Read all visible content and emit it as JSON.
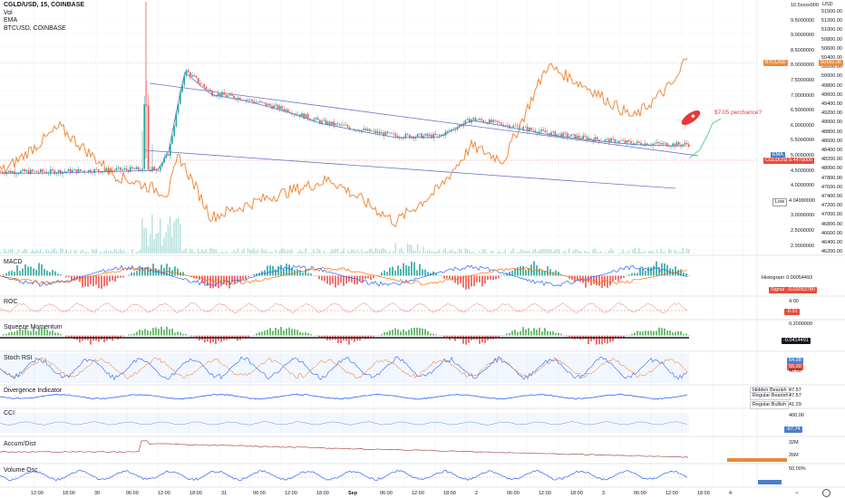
{
  "header": {
    "symbol_line": "CGLD/USD, 15, COINBASE",
    "vol_label": "Vol",
    "ema_label": "EMA",
    "btc_label": "BTCUSD, COINBASE"
  },
  "annotation": {
    "text": "$7.05 perchance?",
    "icon": "rocket-icon",
    "color": "#e53935"
  },
  "main_axis": {
    "cgld_ticks": [
      "10.5xxxx000",
      "9.5000000",
      "9.0000000",
      "8.5000000",
      "8.0000000",
      "7.5000000",
      "7.0000000",
      "6.5000000",
      "6.0000000",
      "5.5000000",
      "5.0000000",
      "4.5000000",
      "4.0000000",
      "3.5000000",
      "3.0000000",
      "2.5000000",
      "2.0000000"
    ],
    "btc_title": "USD",
    "btc_ticks": [
      "51500.00",
      "51200.00",
      "51000.00",
      "50800.00",
      "50600.00",
      "50400.00",
      "50200.00",
      "50000.00",
      "49800.00",
      "49600.00",
      "49400.00",
      "49200.00",
      "49000.00",
      "48800.00",
      "48600.00",
      "48400.00",
      "48200.00",
      "48000.00",
      "47800.00",
      "47600.00",
      "47400.00",
      "47200.00",
      "47000.00",
      "46800.00",
      "46600.00",
      "46400.00",
      "46200.00"
    ]
  },
  "tags": {
    "btc_usd": "BTCUSD",
    "btc_price": "50192.06",
    "ema": "EMA",
    "cgld_usd": "CGLDUSD",
    "cgld_price": "5.4479000",
    "low_label": "Low",
    "low_value": "4.04990000"
  },
  "panels": {
    "macd": {
      "label": "MACD",
      "histogram_label": "Histogram",
      "histogram_value": "0.00054493",
      "signal_label": "Signal",
      "macd_value": "-0.02053780"
    },
    "roc": {
      "label": "ROC",
      "tick": "4.00",
      "value": "-0.31"
    },
    "squeeze": {
      "label": "Squeeze Momentum",
      "tick": "0.2000000",
      "value": "-0.0414491"
    },
    "stoch": {
      "label": "Stoch RSI",
      "tick1": "80.00",
      "tick2": "40.00",
      "v1": "54.98",
      "v2": "55.00"
    },
    "divergence": {
      "label": "Divergence Indicator",
      "hidden_bearish": "Hidden Bearish",
      "regular_bearish": "Regular Bearish",
      "regular_bullish": "Regular Bullish",
      "v1": "47.57",
      "v2": "47.57",
      "v3": "41.29"
    },
    "cci": {
      "label": "CCI",
      "tick": "400.00",
      "value": "-67.74"
    },
    "accum": {
      "label": "Accum/Dist",
      "tick1": "32M",
      "tick2": "26M"
    },
    "volosc": {
      "label": "Volume Osc",
      "tick": "50.00%"
    }
  },
  "time_axis": [
    "12:00",
    "18:00",
    "30",
    "06:00",
    "12:00",
    "18:00",
    "31",
    "06:00",
    "12:00",
    "18:00",
    "Sep",
    "06:00",
    "12:00",
    "18:00",
    "2",
    "06:00",
    "12:00",
    "18:00",
    "3",
    "06:00",
    "12:00",
    "18:00",
    "4"
  ],
  "chart_data": [
    {
      "type": "line",
      "title": "CGLD/USD, 15, COINBASE",
      "series": [
        {
          "name": "CGLD/USD",
          "x": [
            "Aug 29 08:00",
            "Aug 29 18:00",
            "Aug 30 04:00",
            "Aug 30 06:00",
            "Aug 30 09:00",
            "Aug 30 14:00",
            "Aug 30 20:00",
            "Aug 31 04:00",
            "Aug 31 10:00",
            "Aug 31 18:00",
            "Sep 1 00:00",
            "Sep 1 08:00",
            "Sep 1 14:00",
            "Sep 1 20:00",
            "Sep 2 04:00",
            "Sep 2 12:00",
            "Sep 2 20:00",
            "Sep 3 04:00",
            "Sep 3 12:00",
            "Sep 3 16:00"
          ],
          "values": [
            4.55,
            4.6,
            4.65,
            5.2,
            8.1,
            7.3,
            7.1,
            6.7,
            6.3,
            6.0,
            5.8,
            5.8,
            6.4,
            6.2,
            5.9,
            5.7,
            5.55,
            5.5,
            5.55,
            5.45
          ]
        },
        {
          "name": "BTCUSD",
          "x": [
            "Aug 29 00:00",
            "Aug 29 10:00",
            "Aug 29 20:00",
            "Aug 30 06:00",
            "Aug 30 08:00",
            "Aug 30 14:00",
            "Aug 31 00:00",
            "Aug 31 12:00",
            "Sep 1 00:00",
            "Sep 1 08:00",
            "Sep 1 14:00",
            "Sep 1 20:00",
            "Sep 2 04:00",
            "Sep 2 12:00",
            "Sep 2 20:00",
            "Sep 3 04:00",
            "Sep 3 08:00",
            "Sep 3 12:00",
            "Sep 3 15:00"
          ],
          "values": [
            48000,
            48900,
            47900,
            47500,
            48300,
            47000,
            47400,
            47800,
            46900,
            47600,
            48500,
            48200,
            50200,
            49700,
            49100,
            49900,
            51150,
            50700,
            50150
          ]
        }
      ],
      "annotations": [
        "Low 4.04990000",
        "$7.05 perchance?"
      ]
    }
  ]
}
